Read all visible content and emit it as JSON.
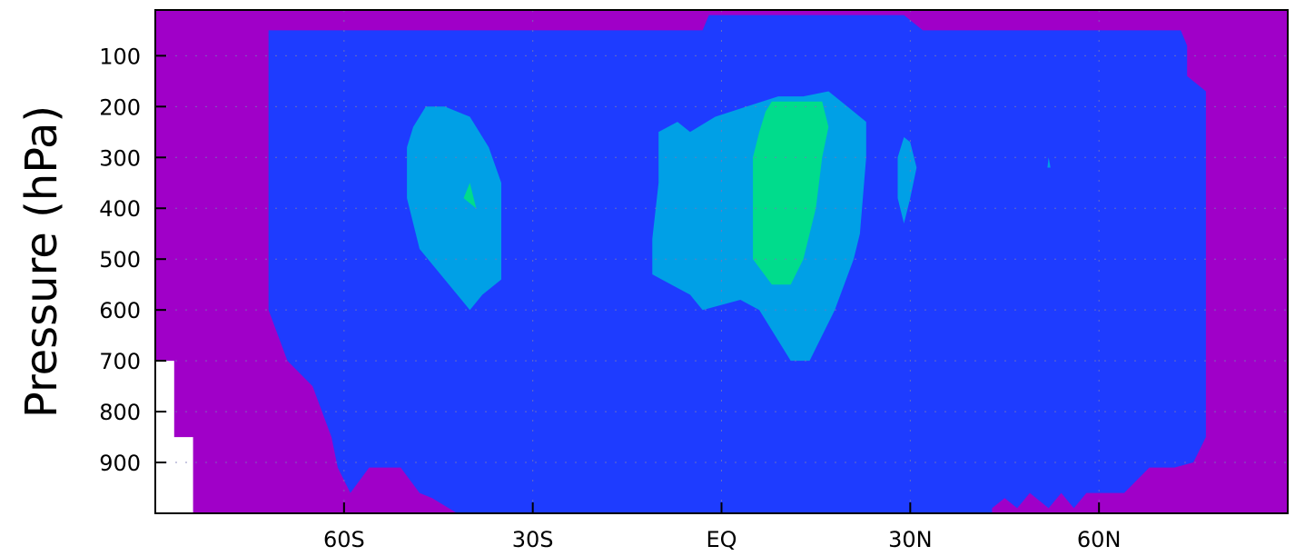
{
  "chart_data": {
    "type": "heatmap",
    "subtype": "filled-contour latitude-pressure cross-section",
    "title": "",
    "xlabel": "",
    "ylabel": "Pressure (hPa)",
    "xlim": [
      -90,
      90
    ],
    "ylim": [
      1000,
      10
    ],
    "y_scale": "linear",
    "grid": "dotted",
    "x_ticks": [
      {
        "value": -60,
        "label": "60S"
      },
      {
        "value": -30,
        "label": "30S"
      },
      {
        "value": 0,
        "label": "EQ"
      },
      {
        "value": 30,
        "label": "30N"
      },
      {
        "value": 60,
        "label": "60N"
      }
    ],
    "y_ticks": [
      {
        "value": 100,
        "label": "100"
      },
      {
        "value": 200,
        "label": "200"
      },
      {
        "value": 300,
        "label": "300"
      },
      {
        "value": 400,
        "label": "400"
      },
      {
        "value": 500,
        "label": "500"
      },
      {
        "value": 600,
        "label": "600"
      },
      {
        "value": 700,
        "label": "700"
      },
      {
        "value": 800,
        "label": "800"
      },
      {
        "value": 900,
        "label": "900"
      }
    ],
    "colors": {
      "background_level": "#a000c8",
      "level_1": "#1e3cff",
      "level_2": "#00a0e6",
      "level_3": "#00dc8c",
      "missing": "#ffffff",
      "gridline": "#7878b4"
    },
    "regions": [
      {
        "level": "missing",
        "points": [
          [
            -90,
            1000
          ],
          [
            -90,
            700
          ],
          [
            -87,
            700
          ],
          [
            -87,
            850
          ],
          [
            -84,
            850
          ],
          [
            -84,
            1000
          ]
        ]
      },
      {
        "level": "level_1",
        "points": [
          [
            -72,
            1000
          ],
          [
            -72,
            50
          ],
          [
            -3,
            50
          ],
          [
            -2,
            20
          ],
          [
            29,
            20
          ],
          [
            32,
            50
          ],
          [
            73,
            50
          ],
          [
            74,
            80
          ],
          [
            74,
            140
          ],
          [
            77,
            170
          ],
          [
            77,
            850
          ],
          [
            75,
            900
          ],
          [
            72,
            910
          ],
          [
            68,
            910
          ],
          [
            64,
            960
          ],
          [
            58,
            960
          ],
          [
            56,
            990
          ],
          [
            54,
            960
          ],
          [
            52,
            990
          ],
          [
            49,
            960
          ],
          [
            47,
            990
          ],
          [
            45,
            970
          ],
          [
            43,
            990
          ],
          [
            43,
            1000
          ],
          [
            -42,
            1000
          ],
          [
            -46,
            970
          ],
          [
            -48,
            960
          ],
          [
            -51,
            910
          ],
          [
            -56,
            910
          ],
          [
            -59,
            960
          ],
          [
            -61,
            910
          ],
          [
            -62,
            850
          ],
          [
            -65,
            750
          ],
          [
            -69,
            700
          ],
          [
            -72,
            600
          ]
        ]
      },
      {
        "level": "level_2",
        "points": [
          [
            -47,
            200
          ],
          [
            -44,
            200
          ],
          [
            -40,
            220
          ],
          [
            -37,
            280
          ],
          [
            -35,
            350
          ],
          [
            -35,
            450
          ],
          [
            -35,
            540
          ],
          [
            -38,
            570
          ],
          [
            -40,
            600
          ],
          [
            -44,
            540
          ],
          [
            -48,
            480
          ],
          [
            -50,
            380
          ],
          [
            -50,
            280
          ],
          [
            -49,
            240
          ]
        ]
      },
      {
        "level": "level_2",
        "points": [
          [
            -10,
            250
          ],
          [
            -7,
            230
          ],
          [
            -5,
            250
          ],
          [
            -1,
            220
          ],
          [
            4,
            200
          ],
          [
            9,
            180
          ],
          [
            13,
            180
          ],
          [
            17,
            170
          ],
          [
            20,
            200
          ],
          [
            23,
            230
          ],
          [
            23,
            300
          ],
          [
            22,
            450
          ],
          [
            21,
            500
          ],
          [
            18,
            600
          ],
          [
            14,
            700
          ],
          [
            11,
            700
          ],
          [
            6,
            600
          ],
          [
            3,
            580
          ],
          [
            -3,
            600
          ],
          [
            -5,
            570
          ],
          [
            -8,
            550
          ],
          [
            -11,
            530
          ],
          [
            -11,
            460
          ],
          [
            -10,
            350
          ]
        ]
      },
      {
        "level": "level_3",
        "points": [
          [
            7,
            210
          ],
          [
            8,
            190
          ],
          [
            12,
            190
          ],
          [
            16,
            190
          ],
          [
            17,
            240
          ],
          [
            16,
            300
          ],
          [
            15,
            400
          ],
          [
            13,
            500
          ],
          [
            11,
            550
          ],
          [
            8,
            550
          ],
          [
            5,
            500
          ],
          [
            5,
            400
          ],
          [
            5,
            300
          ],
          [
            6,
            250
          ]
        ]
      },
      {
        "level": "level_3",
        "points": [
          [
            -40,
            350
          ],
          [
            -39,
            400
          ],
          [
            -41,
            380
          ]
        ]
      },
      {
        "level": "level_2",
        "points": [
          [
            29,
            260
          ],
          [
            30,
            270
          ],
          [
            31,
            320
          ],
          [
            30,
            380
          ],
          [
            29,
            430
          ],
          [
            28,
            380
          ],
          [
            28,
            300
          ]
        ]
      },
      {
        "level": "level_2",
        "points": [
          [
            52,
            300
          ],
          [
            52.3,
            320
          ],
          [
            51.8,
            320
          ]
        ]
      }
    ]
  }
}
